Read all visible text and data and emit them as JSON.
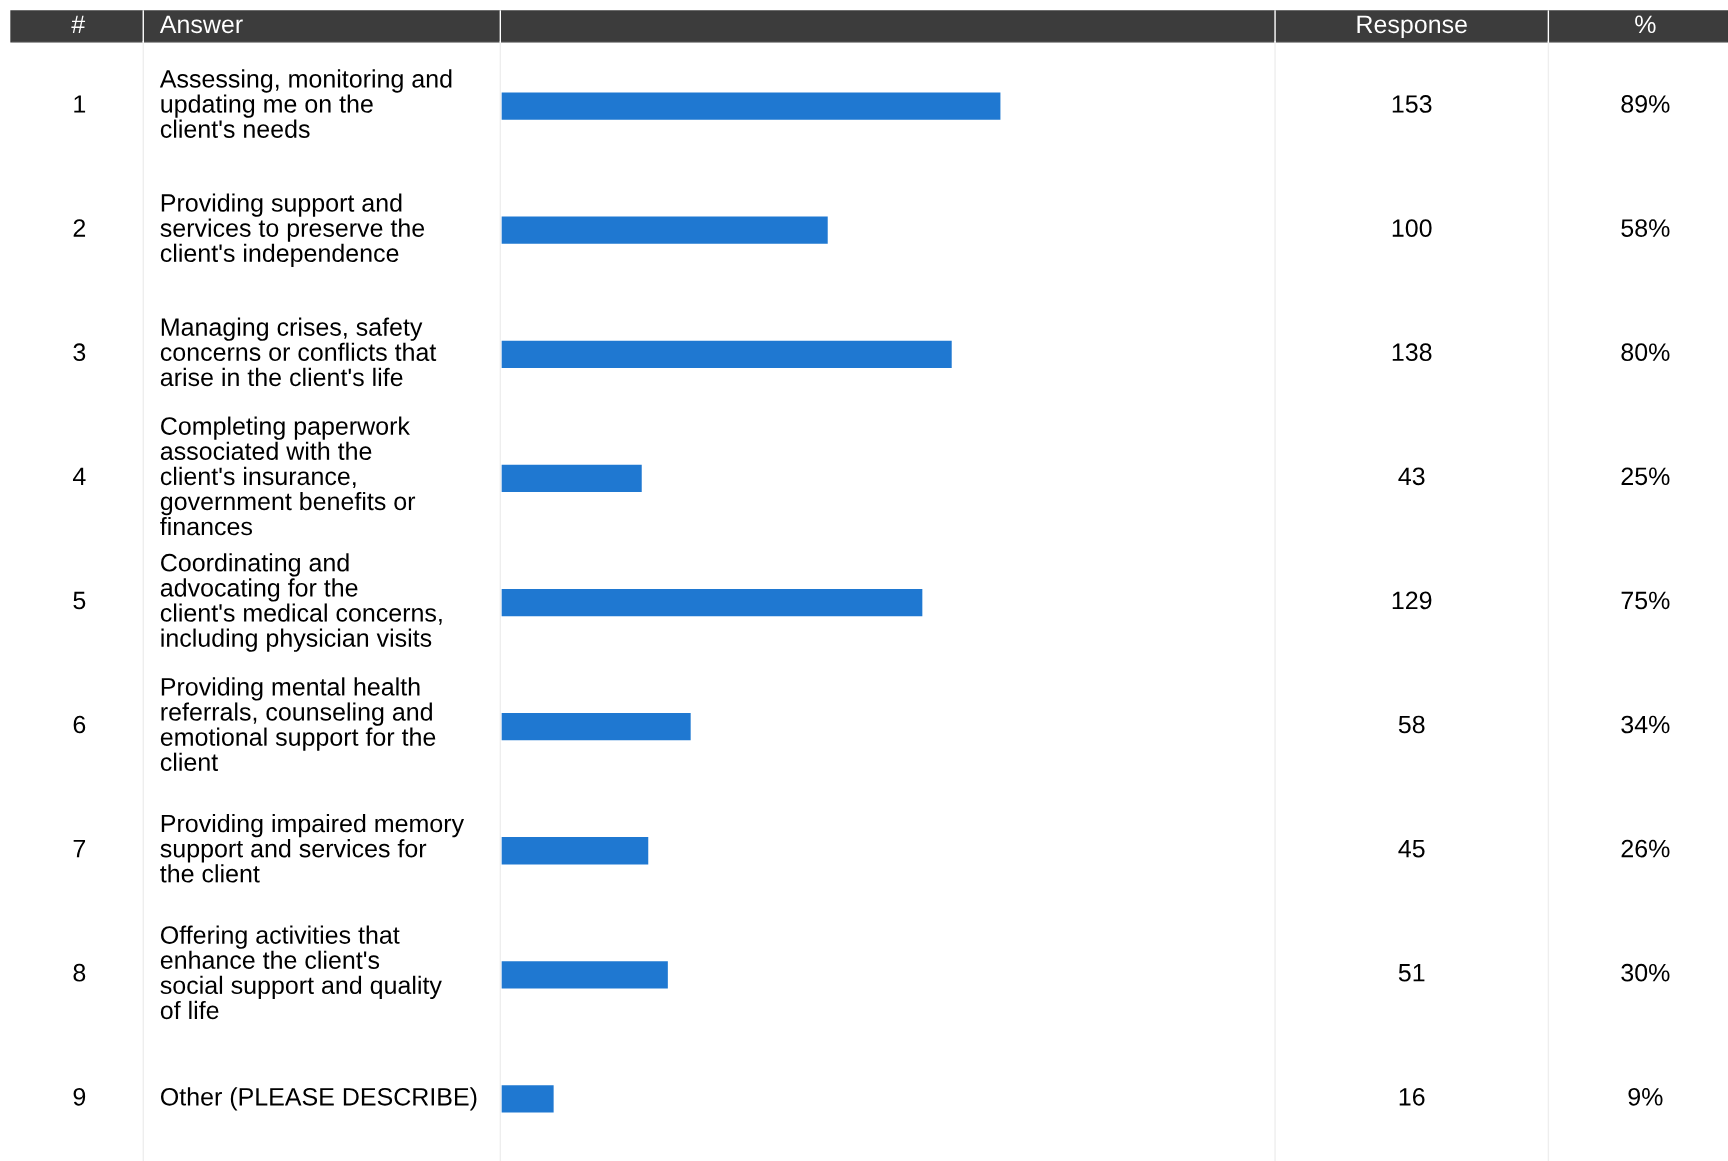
{
  "chart_data": {
    "type": "bar",
    "orientation": "horizontal",
    "color": "#1f78d1",
    "data_labels": true,
    "legend": false,
    "categories": [
      "Assessing, monitoring and updating me on the client's needs",
      "Providing support and services to preserve the client's independence",
      "Managing crises, safety concerns or conflicts that arise in the client's life",
      "Completing paperwork associated with the client's insurance, government benefits or finances",
      "Coordinating and advocating for the client's medical concerns, including physician visits",
      "Providing mental health referrals, counseling and emotional support for the client",
      "Providing impaired memory support and services for the client",
      "Offering activities that enhance the client's social support and quality of life",
      "Other (PLEASE DESCRIBE)"
    ],
    "values": [
      153,
      100,
      138,
      43,
      129,
      58,
      45,
      51,
      16
    ],
    "annotations": [
      "#",
      "Answer",
      "Response",
      "%",
      "1",
      "2",
      "3",
      "4",
      "5",
      "6",
      "7",
      "8",
      "9",
      "89%",
      "58%",
      "80%",
      "25%",
      "75%",
      "34%",
      "26%",
      "30%",
      "9%"
    ]
  }
}
